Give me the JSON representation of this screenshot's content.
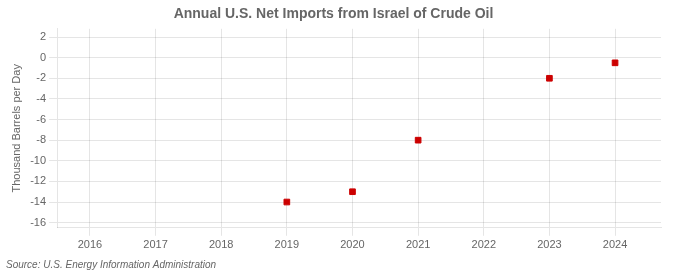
{
  "chart_data": {
    "type": "scatter",
    "title": "Annual U.S. Net Imports from Israel of Crude Oil",
    "ylabel": "Thousand Barrels per Day",
    "annotation": "Source: U.S. Energy Information Administration",
    "x": [
      2019,
      2020,
      2021,
      2023,
      2024
    ],
    "values": [
      -14,
      -13,
      -8,
      -2,
      -0.5
    ],
    "color": "#cc0000",
    "marker": "square",
    "xlim": [
      2015.5,
      2024.7
    ],
    "xticks": [
      2016,
      2017,
      2018,
      2019,
      2020,
      2021,
      2022,
      2023,
      2024
    ],
    "ylim": [
      -16.5,
      2.8
    ],
    "yticks": [
      2,
      0,
      -2,
      -4,
      -6,
      -8,
      -10,
      -12,
      -14,
      -16
    ],
    "grid": true
  }
}
